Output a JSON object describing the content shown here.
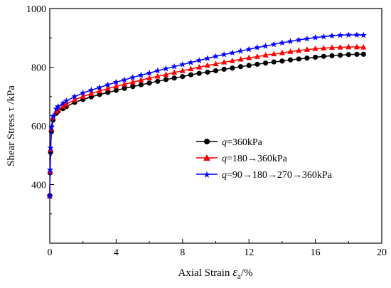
{
  "chart_data": {
    "type": "line",
    "title": "",
    "xlabel_text": "Axial Strain ",
    "xlabel_symbol": "ε",
    "xlabel_sub": "a",
    "xlabel_unit": "/%",
    "ylabel": "Shear Stress τ /kPa",
    "xlim": [
      0,
      20
    ],
    "ylim": [
      200,
      1000
    ],
    "xticks": [
      0,
      4,
      8,
      12,
      16,
      20
    ],
    "yticks": [
      400,
      600,
      800,
      1000
    ],
    "grid": false,
    "legend_position": "right-center",
    "x": [
      0,
      0.02,
      0.05,
      0.1,
      0.2,
      0.4,
      0.5,
      0.8,
      1,
      1.5,
      2,
      2.5,
      3,
      3.5,
      4,
      4.5,
      5,
      5.5,
      6,
      6.5,
      7,
      7.5,
      8,
      8.5,
      9,
      9.5,
      10,
      10.5,
      11,
      11.5,
      12,
      12.5,
      13,
      13.5,
      14,
      14.5,
      15,
      15.5,
      16,
      16.5,
      17,
      17.5,
      18,
      18.5,
      18.9
    ],
    "series": [
      {
        "name_prefix": "q",
        "name_suffix": "=360kPa",
        "color": "#000000",
        "marker": "circle",
        "y": [
          362,
          440,
          510,
          580,
          620,
          643,
          650,
          659,
          666,
          680,
          690,
          699,
          707,
          714,
          721,
          728,
          734,
          740,
          746,
          752,
          758,
          763,
          768,
          774,
          779,
          783,
          788,
          793,
          797,
          802,
          806,
          810,
          814,
          818,
          821,
          825,
          828,
          831,
          834,
          837,
          839,
          841,
          843,
          844,
          844
        ]
      },
      {
        "name_prefix": "q",
        "name_suffix": "=180→360kPa",
        "color": "#ff0000",
        "marker": "triangle",
        "y": [
          360,
          445,
          520,
          590,
          628,
          650,
          657,
          667,
          674,
          689,
          700,
          710,
          719,
          727,
          735,
          742,
          749,
          756,
          763,
          769,
          775,
          782,
          788,
          794,
          800,
          806,
          811,
          817,
          822,
          827,
          832,
          836,
          841,
          845,
          849,
          853,
          857,
          860,
          863,
          865,
          867,
          868,
          869,
          869,
          868
        ]
      },
      {
        "name_prefix": "q",
        "name_suffix": "=90→180→270→360kPa",
        "color": "#0000ff",
        "marker": "star",
        "y": [
          360,
          450,
          525,
          595,
          633,
          658,
          666,
          677,
          685,
          700,
          712,
          722,
          731,
          740,
          749,
          757,
          765,
          773,
          780,
          788,
          795,
          802,
          809,
          816,
          823,
          830,
          837,
          843,
          849,
          855,
          861,
          867,
          872,
          878,
          883,
          888,
          893,
          897,
          901,
          904,
          907,
          909,
          910,
          910,
          909
        ]
      }
    ]
  }
}
